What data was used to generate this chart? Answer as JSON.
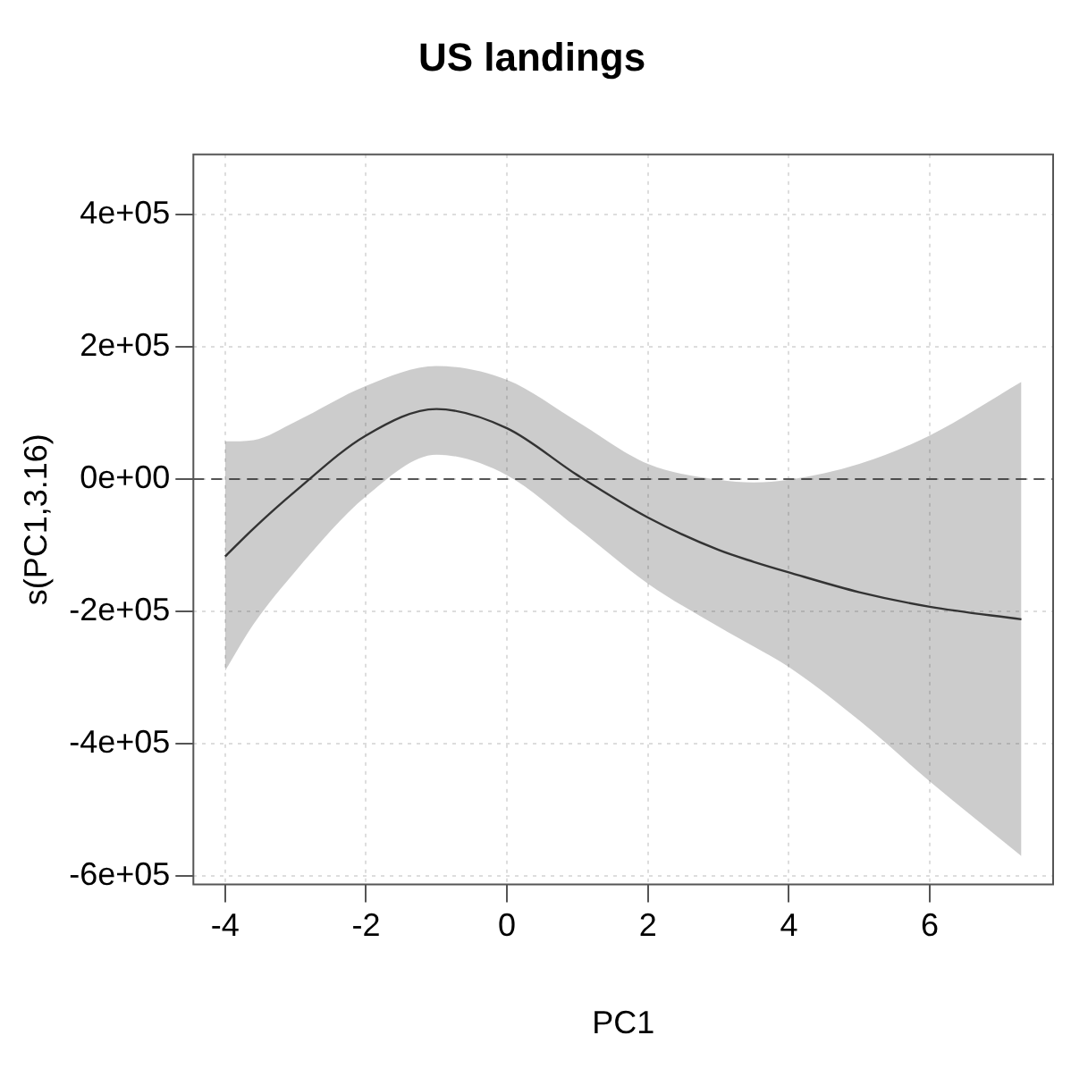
{
  "chart_data": {
    "type": "line",
    "title": "US landings",
    "xlabel": "PC1",
    "ylabel": "s(PC1,3.16)",
    "xlim": [
      -4.45,
      7.75
    ],
    "ylim": [
      -613000,
      491000
    ],
    "xticks": [
      -4,
      -2,
      0,
      2,
      4,
      6
    ],
    "yticks": [
      {
        "value": 400000,
        "label": "4e+05"
      },
      {
        "value": 200000,
        "label": "2e+05"
      },
      {
        "value": 0,
        "label": "0e+00"
      },
      {
        "value": -200000,
        "label": "-2e+05"
      },
      {
        "value": -400000,
        "label": "-4e+05"
      },
      {
        "value": -600000,
        "label": "-6e+05"
      }
    ],
    "grid": true,
    "marker": "none",
    "line_style": "solid",
    "ref_lines": [
      {
        "axis": "y",
        "value": 0,
        "color": "#555555",
        "line_style": "dashed"
      }
    ],
    "series": [
      {
        "color": "#333333",
        "x": [
          -4,
          -3.6,
          -3,
          -2,
          -1,
          0,
          1,
          2,
          3,
          3.5,
          4,
          5,
          6,
          7.3
        ],
        "values": [
          -117000,
          -75000,
          -18000,
          66000,
          106000,
          77000,
          6000,
          -58000,
          -107000,
          -125000,
          -141000,
          -171000,
          -193000,
          -212000
        ],
        "upper": [
          57000,
          59000,
          87000,
          141000,
          171000,
          150000,
          87000,
          23000,
          -1000,
          -5000,
          -1000,
          23000,
          66000,
          147000
        ],
        "lower": [
          -290000,
          -220000,
          -139000,
          -26000,
          37000,
          6000,
          -74000,
          -158000,
          -223000,
          -253000,
          -284000,
          -365000,
          -457000,
          -570000
        ]
      }
    ]
  }
}
